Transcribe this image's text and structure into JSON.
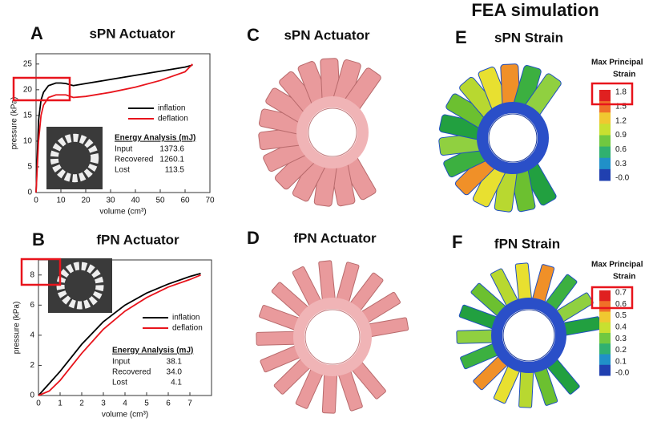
{
  "header": "FEA simulation",
  "chart_data": [
    {
      "type": "line",
      "letter": "A",
      "title": "sPN Actuator",
      "x_label": "volume (cm³)",
      "y_label": "pressure (kPa)",
      "x": [
        0,
        1,
        2,
        3,
        5,
        8,
        10,
        12,
        15,
        20,
        30,
        40,
        50,
        60,
        63
      ],
      "series": [
        {
          "name": "inflation",
          "color": "#000000",
          "values": [
            0,
            14,
            18,
            19.5,
            20.8,
            21.3,
            21.3,
            21.2,
            20.8,
            21.2,
            22,
            22.8,
            23.6,
            24.4,
            24.8
          ]
        },
        {
          "name": "deflation",
          "color": "#e8141c",
          "values": [
            0,
            10,
            15,
            17,
            18.5,
            19,
            19,
            19,
            18.5,
            18.7,
            19.5,
            20.5,
            21.8,
            23.5,
            25
          ]
        }
      ],
      "xlim": [
        0,
        70
      ],
      "xticks": [
        0,
        10,
        20,
        30,
        40,
        50,
        60,
        70
      ],
      "ylim": [
        0,
        27
      ],
      "yticks": [
        0,
        5,
        10,
        15,
        20,
        25
      ],
      "inset": {
        "title": "Energy Analysis (mJ)",
        "rows": [
          [
            "Input",
            "1373.6"
          ],
          [
            "Recovered",
            "1260.1"
          ],
          [
            "Lost",
            "113.5"
          ]
        ]
      }
    },
    {
      "type": "line",
      "letter": "B",
      "title": "fPN Actuator",
      "x_label": "volume (cm³)",
      "y_label": "pressure (kPa)",
      "x": [
        0,
        0.5,
        1,
        1.5,
        2,
        3,
        4,
        5,
        6,
        7,
        7.5
      ],
      "series": [
        {
          "name": "inflation",
          "color": "#000000",
          "values": [
            0,
            0.8,
            1.6,
            2.5,
            3.4,
            4.9,
            6.0,
            6.8,
            7.4,
            7.9,
            8.1
          ]
        },
        {
          "name": "deflation",
          "color": "#e8141c",
          "values": [
            0,
            0.3,
            1.0,
            1.9,
            2.8,
            4.4,
            5.6,
            6.5,
            7.2,
            7.7,
            8.0
          ]
        }
      ],
      "xlim": [
        0,
        8
      ],
      "xticks": [
        0,
        1,
        2,
        3,
        4,
        5,
        6,
        7
      ],
      "ylim": [
        0,
        9
      ],
      "yticks": [
        0,
        2,
        4,
        6,
        8
      ],
      "inset": {
        "title": "Energy Analysis (mJ)",
        "rows": [
          [
            "Input",
            "38.1"
          ],
          [
            "Recovered",
            "34.0"
          ],
          [
            "Lost",
            "4.1"
          ]
        ]
      }
    }
  ],
  "panels": [
    {
      "letter": "C",
      "title": "sPN Actuator"
    },
    {
      "letter": "D",
      "title": "fPN Actuator"
    },
    {
      "letter": "E",
      "title": "sPN Strain",
      "legend_title": [
        "Max Principal",
        "Strain"
      ],
      "legend_ticks": [
        "1.8",
        "1.5",
        "1.2",
        "0.9",
        "0.6",
        "0.3",
        "-0.0"
      ]
    },
    {
      "letter": "F",
      "title": "fPN Strain",
      "legend_title": [
        "Max Principal",
        "Strain"
      ],
      "legend_ticks": [
        "0.7",
        "0.6",
        "0.5",
        "0.4",
        "0.3",
        "0.2",
        "0.1",
        "-0.0"
      ]
    }
  ]
}
